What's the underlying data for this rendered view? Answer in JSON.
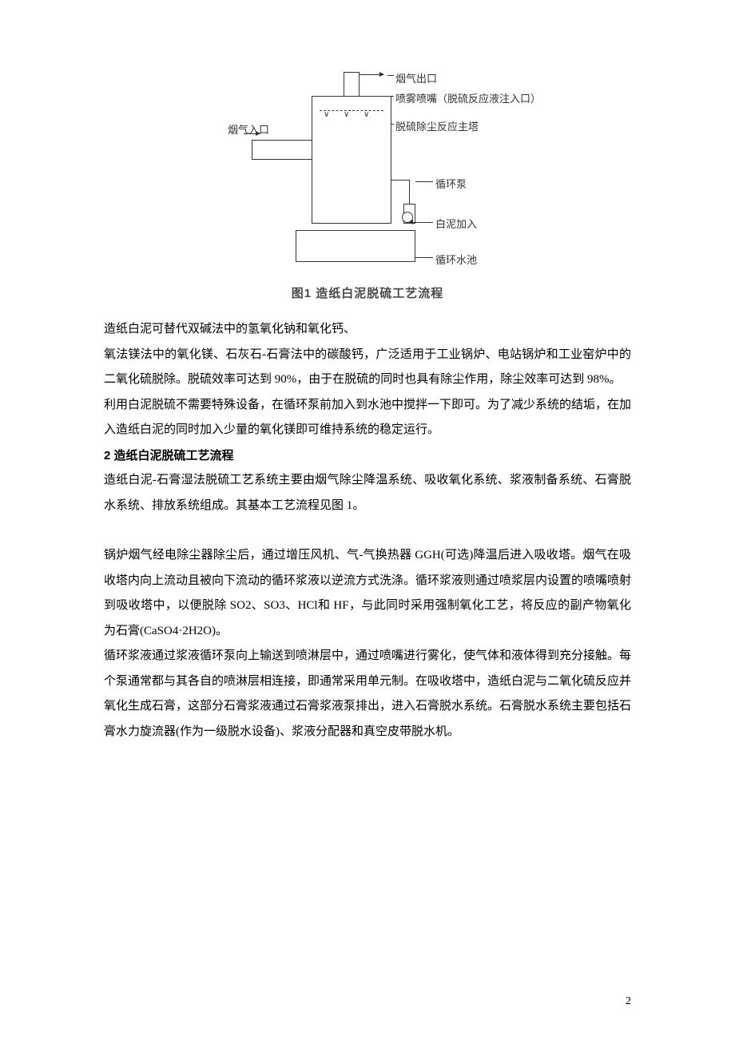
{
  "diagram": {
    "labels": {
      "outlet": "烟气出口",
      "nozzle": "喷雾喷嘴（脱硫反应液注入口）",
      "tower": "脱硫除尘反应主塔",
      "inlet": "烟气入口",
      "pump": "循环泵",
      "add": "白泥加入",
      "pool": "循环水池"
    },
    "caption": "图1  造纸白泥脱硫工艺流程"
  },
  "body": {
    "p1": "造纸白泥可替代双碱法中的氢氧化钠和氧化钙、",
    "p2": "氧法镁法中的氧化镁、石灰石-石膏法中的碳酸钙，广泛适用于工业锅炉、电站锅炉和工业窑炉中的二氧化硫脱除。脱硫效率可达到 90%，由于在脱硫的同时也具有除尘作用，除尘效率可达到 98%。",
    "p3": "利用白泥脱硫不需要特殊设备，在循环泵前加入到水池中搅拌一下即可。为了减少系统的结垢，在加入造纸白泥的同时加入少量的氧化镁即可维持系统的稳定运行。",
    "h2": "2 造纸白泥脱硫工艺流程",
    "p4": "造纸白泥-石膏湿法脱硫工艺系统主要由烟气除尘降温系统、吸收氧化系统、浆液制备系统、石膏脱水系统、排放系统组成。其基本工艺流程见图 1。",
    "p5": "锅炉烟气经电除尘器除尘后，通过增压风机、气-气换热器 GGH(可选)降温后进入吸收塔。烟气在吸收塔内向上流动且被向下流动的循环浆液以逆流方式洗涤。循环浆液则通过喷浆层内设置的喷嘴喷射到吸收塔中，以便脱除 SO2、SO3、HCl和 HF，与此同时采用强制氧化工艺，将反应的副产物氧化为石膏(CaSO4·2H2O)。",
    "p6": "循环浆液通过浆液循环泵向上输送到喷淋层中，通过喷嘴进行雾化，使气体和液体得到充分接触。每个泵通常都与其各自的喷淋层相连接，即通常采用单元制。在吸收塔中，造纸白泥与二氧化硫反应并氧化生成石膏，这部分石膏浆液通过石膏浆液泵排出，进入石膏脱水系统。石膏脱水系统主要包括石膏水力旋流器(作为一级脱水设备)、浆液分配器和真空皮带脱水机。"
  },
  "page_number": "2"
}
